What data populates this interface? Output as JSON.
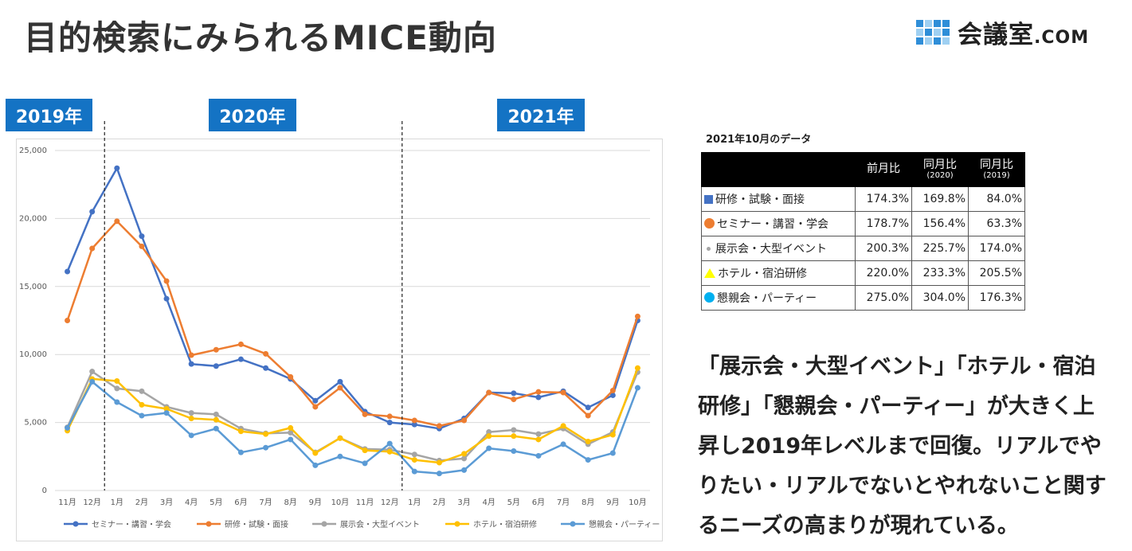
{
  "page_title": "目的検索にみられるMICE動向",
  "logo": {
    "main": "会議室",
    "suffix": ".COM"
  },
  "year_labels": [
    "2019年",
    "2020年",
    "2021年"
  ],
  "chart_data": {
    "type": "line",
    "title": "",
    "xlabel": "",
    "ylabel": "",
    "ylim": [
      0,
      25000
    ],
    "y_ticks": [
      "0",
      "5,000",
      "10,000",
      "15,000",
      "20,000",
      "25,000"
    ],
    "grid": true,
    "legend_position": "bottom",
    "categories": [
      "11月",
      "12月",
      "1月",
      "2月",
      "3月",
      "4月",
      "5月",
      "6月",
      "7月",
      "8月",
      "9月",
      "10月",
      "11月",
      "12月",
      "1月",
      "2月",
      "3月",
      "4月",
      "5月",
      "6月",
      "7月",
      "8月",
      "9月",
      "10月"
    ],
    "year_dividers_after_index": [
      1,
      13
    ],
    "series": [
      {
        "name": "セミナー・講習・学会",
        "color": "#4472c4",
        "values": [
          16100,
          20500,
          23700,
          18700,
          14100,
          9300,
          9150,
          9650,
          9000,
          8200,
          6600,
          8000,
          5800,
          5000,
          4850,
          4550,
          5300,
          7200,
          7150,
          6850,
          7300,
          6100,
          7000,
          12500
        ]
      },
      {
        "name": "研修・試験・面接",
        "color": "#ed7d31",
        "values": [
          12500,
          17800,
          19800,
          17950,
          15400,
          9950,
          10350,
          10750,
          10050,
          8350,
          6150,
          7550,
          5600,
          5450,
          5150,
          4750,
          5150,
          7200,
          6700,
          7250,
          7200,
          5500,
          7350,
          12800
        ]
      },
      {
        "name": "展示会・大型イベント",
        "color": "#a5a5a5",
        "values": [
          4650,
          8750,
          7500,
          7300,
          6150,
          5700,
          5600,
          4550,
          4200,
          4250,
          2800,
          3850,
          3050,
          3000,
          2650,
          2200,
          2350,
          4300,
          4450,
          4150,
          4550,
          3400,
          4300,
          8700
        ]
      },
      {
        "name": "ホテル・宿泊研修",
        "color": "#ffc000",
        "values": [
          4400,
          8200,
          8050,
          6300,
          6000,
          5300,
          5200,
          4350,
          4150,
          4600,
          2750,
          3850,
          2950,
          2850,
          2250,
          2050,
          2700,
          4000,
          4000,
          3750,
          4750,
          3600,
          4100,
          9000
        ]
      },
      {
        "name": "懇親会・パーティー",
        "color": "#5b9bd5",
        "values": [
          4600,
          8000,
          6500,
          5500,
          5700,
          4050,
          4550,
          2800,
          3150,
          3750,
          1850,
          2500,
          2000,
          3450,
          1400,
          1250,
          1500,
          3100,
          2900,
          2550,
          3400,
          2250,
          2750,
          7550
        ]
      }
    ]
  },
  "table": {
    "caption": "2021年10月のデータ",
    "headers": [
      {
        "main": "前月比",
        "sub": ""
      },
      {
        "main": "同月比",
        "sub": "(2020)"
      },
      {
        "main": "同月比",
        "sub": "(2019)"
      }
    ],
    "rows": [
      {
        "label": "研修・試験・面接",
        "marker": "square-blue",
        "values": [
          "174.3%",
          "169.8%",
          "84.0%"
        ]
      },
      {
        "label": "セミナー・講習・学会",
        "marker": "circle-orange",
        "values": [
          "178.7%",
          "156.4%",
          "63.3%"
        ]
      },
      {
        "label": "展示会・大型イベント",
        "marker": "dot-gray",
        "values": [
          "200.3%",
          "225.7%",
          "174.0%"
        ]
      },
      {
        "label": "ホテル・宿泊研修",
        "marker": "triangle-yellow",
        "values": [
          "220.0%",
          "233.3%",
          "205.5%"
        ]
      },
      {
        "label": "懇親会・パーティー",
        "marker": "circle-cyan",
        "values": [
          "275.0%",
          "304.0%",
          "176.3%"
        ]
      }
    ]
  },
  "commentary": "「展示会・大型イベント」「ホテル・宿泊研修」「懇親会・パーティー」が大きく上昇し2019年レベルまで回復。リアルでやりたい・リアルでないとやれないこと関するニーズの高まりが現れている。"
}
